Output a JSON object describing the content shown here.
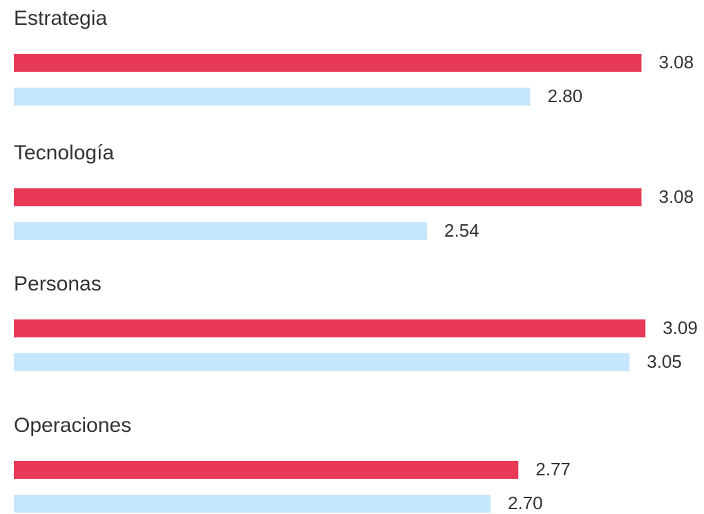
{
  "chart_data": {
    "type": "bar",
    "orientation": "horizontal",
    "categories": [
      "Estrategia",
      "Tecnología",
      "Personas",
      "Operaciones"
    ],
    "series": [
      {
        "color": "#e83a56",
        "values": [
          3.08,
          3.08,
          3.09,
          2.77
        ],
        "value_labels": [
          "3.08",
          "3.08",
          "3.09",
          "2.77"
        ]
      },
      {
        "color": "#c5e6fb",
        "values": [
          2.8,
          2.54,
          3.05,
          2.7
        ],
        "value_labels": [
          "2.80",
          "2.54",
          "3.05",
          "2.70"
        ]
      }
    ],
    "xlim": [
      1.5,
      3.1
    ]
  }
}
